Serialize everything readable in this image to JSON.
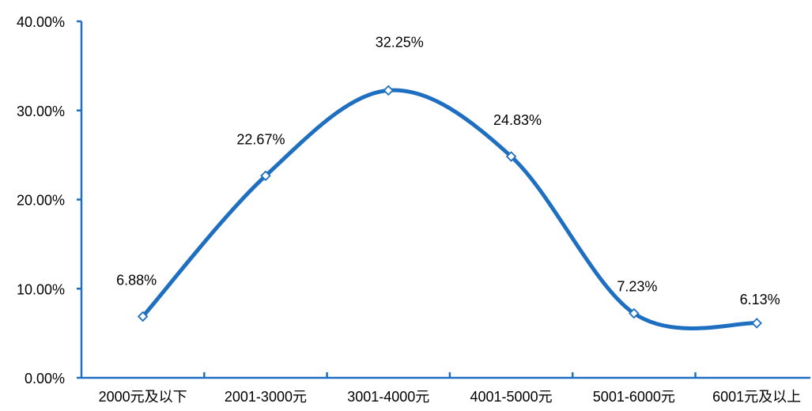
{
  "chart_data": {
    "type": "line",
    "smooth": true,
    "categories": [
      "2000元及以下",
      "2001-3000元",
      "3001-4000元",
      "4001-5000元",
      "5001-6000元",
      "6001元及以上"
    ],
    "series": [
      {
        "values": [
          6.88,
          22.67,
          32.25,
          24.83,
          7.23,
          6.13
        ],
        "labels": [
          "6.88%",
          "22.67%",
          "32.25%",
          "24.83%",
          "7.23%",
          "6.13%"
        ]
      }
    ],
    "yticks": [
      "0.00%",
      "10.00%",
      "20.00%",
      "30.00%",
      "40.00%"
    ],
    "ylim": [
      0,
      40
    ],
    "grid": false,
    "line_color": "#1f6fc1",
    "marker": "diamond-hollow"
  }
}
